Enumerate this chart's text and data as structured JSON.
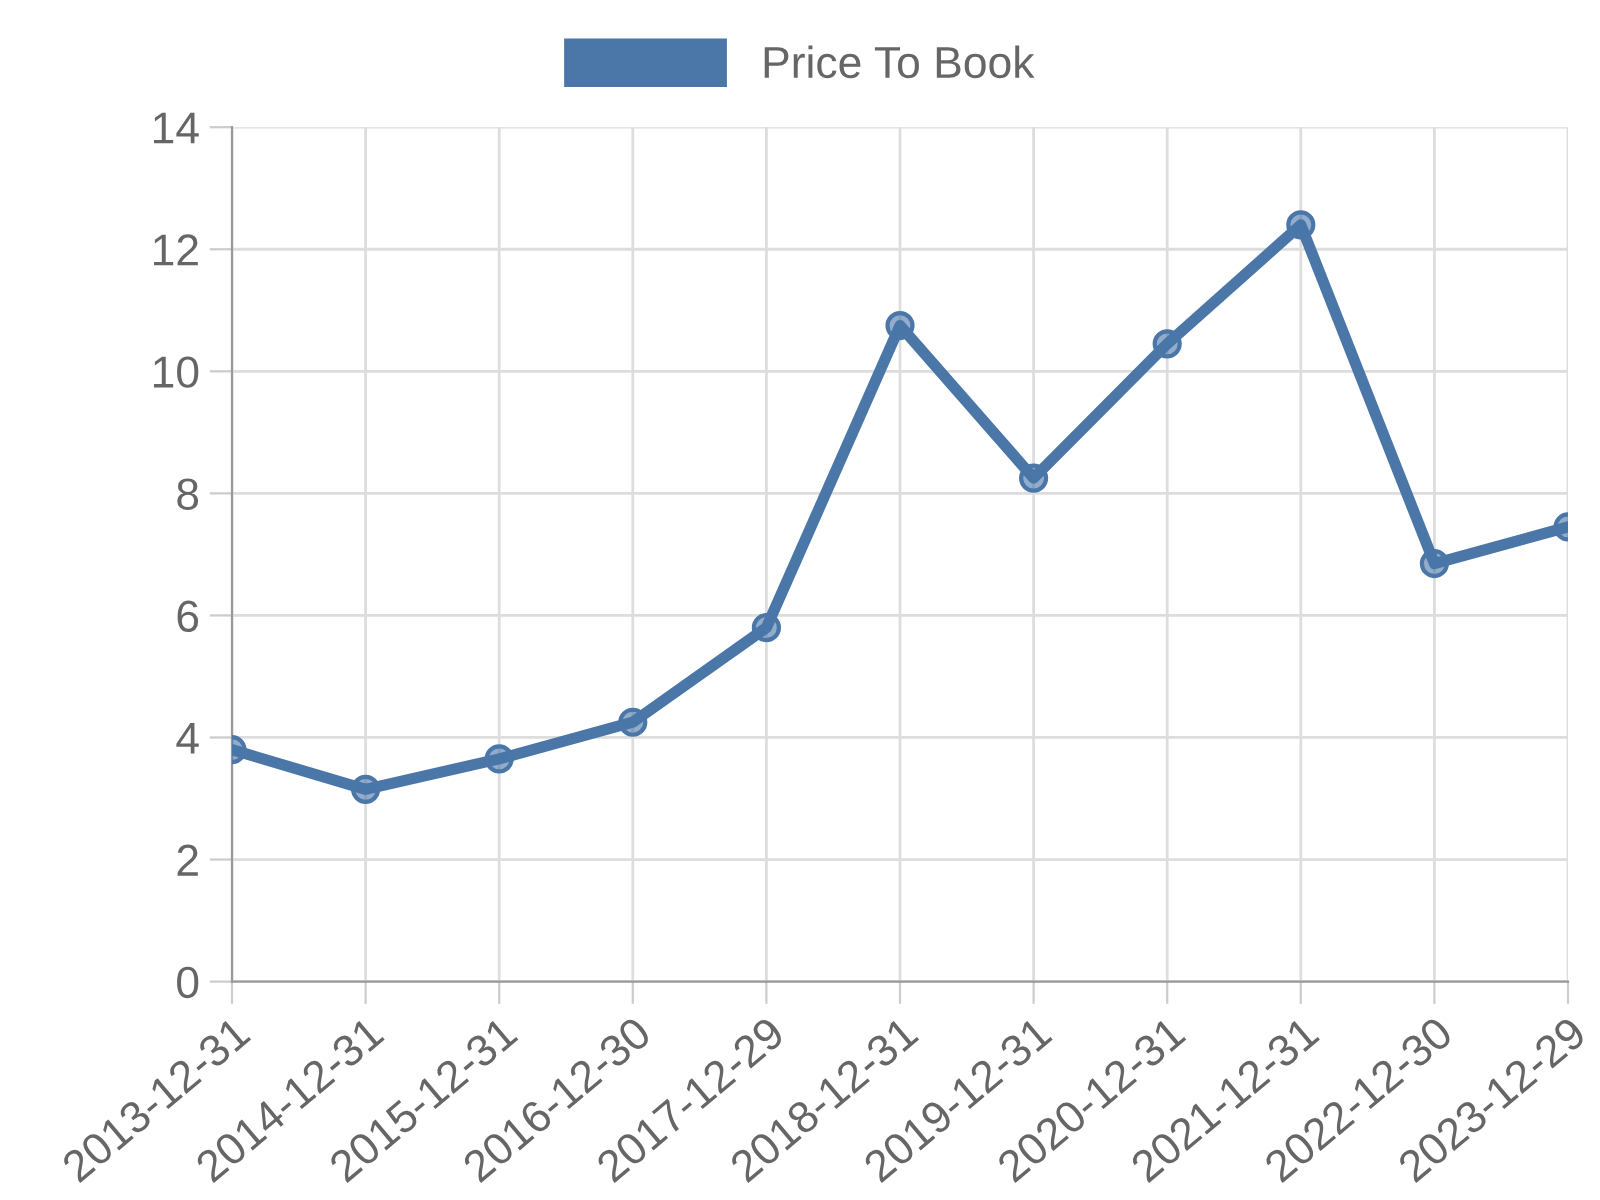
{
  "chart_data": {
    "type": "line",
    "categories": [
      "2013-12-31",
      "2014-12-31",
      "2015-12-31",
      "2016-12-30",
      "2017-12-29",
      "2018-12-31",
      "2019-12-31",
      "2020-12-31",
      "2021-12-31",
      "2022-12-30",
      "2023-12-29"
    ],
    "series": [
      {
        "name": "Price To Book",
        "color": "#4a76a8",
        "values": [
          3.8,
          3.15,
          3.65,
          4.25,
          5.8,
          10.75,
          8.25,
          10.45,
          12.4,
          6.85,
          7.45
        ]
      }
    ],
    "ylim": [
      0,
      14
    ],
    "yticks": [
      0,
      2,
      4,
      6,
      8,
      10,
      12,
      14
    ],
    "grid": true,
    "legend": "top",
    "marker": "circle",
    "line_style": "solid"
  }
}
